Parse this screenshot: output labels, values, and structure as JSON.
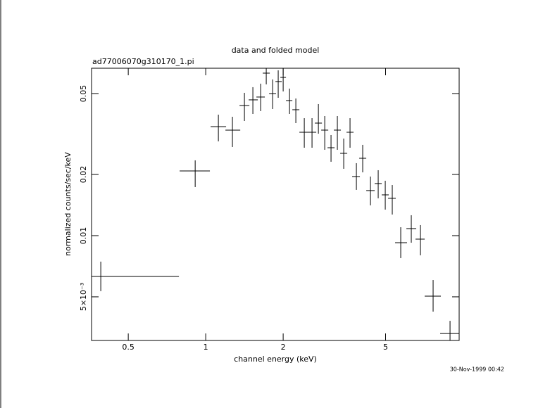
{
  "chart_data": {
    "type": "errorbar",
    "title": "data and folded model",
    "subtitle": "ad77006070g310170_1.pi",
    "x_label": "channel energy (keV)",
    "y_label": "normalized counts/sec/keV",
    "footer": "30-Nov-1999 00:42",
    "x_log": true,
    "y_log": true,
    "color": "#000000",
    "xlim": [
      0.36,
      9.66
    ],
    "ylim": [
      0.00305,
      0.0666
    ],
    "xticks": [
      0.5,
      1,
      2,
      5
    ],
    "yticks": [
      {
        "value": 0.005,
        "label": "5×10⁻³"
      },
      0.01,
      0.02,
      0.05
    ],
    "x": [
      0.391,
      0.91,
      1.12,
      1.27,
      1.414,
      1.525,
      1.635,
      1.719,
      1.82,
      1.913,
      2.0,
      2.117,
      2.24,
      2.416,
      2.589,
      2.741,
      2.901,
      3.069,
      3.248,
      3.438,
      3.638,
      3.851,
      4.075,
      4.368,
      4.681,
      4.986,
      5.309,
      5.727,
      6.294,
      6.832,
      7.652,
      8.903
    ],
    "x_min": [
      0.36,
      0.792,
      1.045,
      1.193,
      1.353,
      1.469,
      1.574,
      1.666,
      1.763,
      1.866,
      1.95,
      2.051,
      2.171,
      2.312,
      2.493,
      2.656,
      2.811,
      2.974,
      3.147,
      3.331,
      3.526,
      3.707,
      3.949,
      4.206,
      4.536,
      4.831,
      5.113,
      5.445,
      6.023,
      6.537,
      7.095,
      8.15
    ],
    "x_max": [
      0.787,
      1.038,
      1.2,
      1.362,
      1.478,
      1.594,
      1.697,
      1.774,
      1.877,
      1.975,
      2.051,
      2.171,
      2.312,
      2.541,
      2.689,
      2.829,
      2.994,
      3.168,
      3.352,
      3.548,
      3.754,
      3.974,
      4.206,
      4.536,
      4.831,
      5.145,
      5.479,
      6.06,
      6.578,
      7.095,
      8.201,
      9.66
    ],
    "y": [
      0.0063,
      0.02081,
      0.03439,
      0.03304,
      0.04366,
      0.04655,
      0.04806,
      0.063,
      0.05,
      0.05728,
      0.06003,
      0.04618,
      0.04163,
      0.03225,
      0.03225,
      0.03577,
      0.03304,
      0.02707,
      0.03304,
      0.0254,
      0.03225,
      0.01953,
      0.02402,
      0.01666,
      0.01804,
      0.01587,
      0.01526,
      0.00923,
      0.01083,
      0.00961,
      0.00504,
      0.0033
    ],
    "y_min": [
      0.00533,
      0.01733,
      0.02909,
      0.02729,
      0.03664,
      0.03968,
      0.04097,
      0.05547,
      0.04196,
      0.04766,
      0.05122,
      0.03968,
      0.03577,
      0.02707,
      0.02707,
      0.03173,
      0.02644,
      0.02309,
      0.02644,
      0.02132,
      0.02707,
      0.01679,
      0.02048,
      0.01409,
      0.01526,
      0.01343,
      0.0127,
      0.00775,
      0.00923,
      0.008,
      0.00423,
      0.00305
    ],
    "y_max": [
      0.00745,
      0.02346,
      0.03937,
      0.03843,
      0.05041,
      0.05374,
      0.05592,
      0.06714,
      0.05866,
      0.06504,
      0.06658,
      0.05288,
      0.04727,
      0.03783,
      0.03783,
      0.04437,
      0.03874,
      0.03125,
      0.03874,
      0.03003,
      0.03783,
      0.02272,
      0.02796,
      0.01953,
      0.02098,
      0.01862,
      0.01774,
      0.011,
      0.0126,
      0.01127,
      0.00605,
      0.00381
    ]
  }
}
